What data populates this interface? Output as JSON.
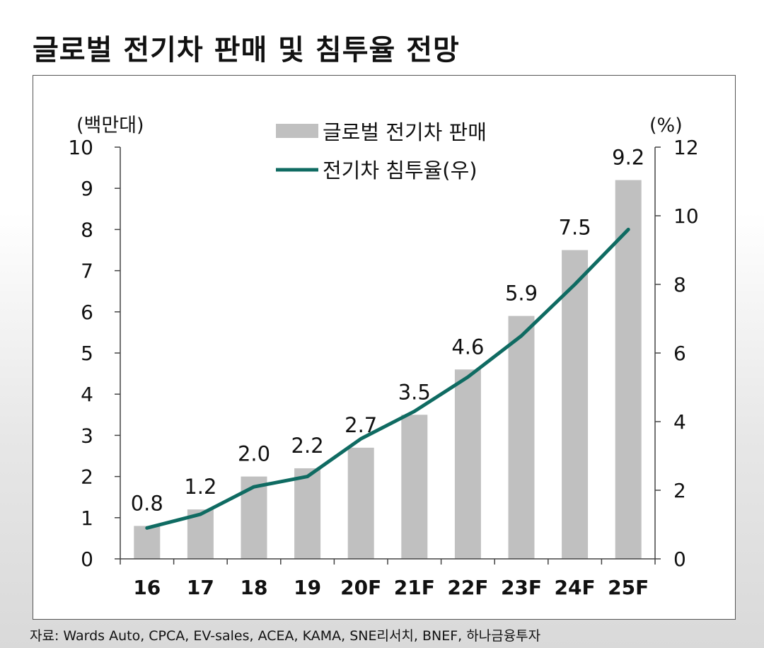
{
  "header": {
    "title": "글로벌 전기차 판매 및 침투율 전망"
  },
  "footer": {
    "source": "자료: Wards Auto, CPCA, EV-sales, ACEA, KAMA, SNE리서치, BNEF, 하나금융투자"
  },
  "colors": {
    "bar": "#c0c0c0",
    "line": "#0f6b62",
    "axis": "#444444"
  },
  "chart_data": {
    "type": "bar",
    "title": "글로벌 전기차 판매 및 침투율 전망",
    "categories": [
      "16",
      "17",
      "18",
      "19",
      "20F",
      "21F",
      "22F",
      "23F",
      "24F",
      "25F"
    ],
    "series": [
      {
        "name": "글로벌 전기차 판매",
        "type": "bar",
        "axis": "left",
        "values": [
          0.8,
          1.2,
          2.0,
          2.2,
          2.7,
          3.5,
          4.6,
          5.9,
          7.5,
          9.2
        ],
        "labels": [
          "0.8",
          "1.2",
          "2.0",
          "2.2",
          "2.7",
          "3.5",
          "4.6",
          "5.9",
          "7.5",
          "9.2"
        ]
      },
      {
        "name": "전기차 침투율(우)",
        "type": "line",
        "axis": "right",
        "values": [
          0.9,
          1.3,
          2.1,
          2.4,
          3.5,
          4.3,
          5.3,
          6.5,
          8.0,
          9.6
        ]
      }
    ],
    "ylabel": "(백만대)",
    "y2label": "(%)",
    "ylim": [
      0,
      10
    ],
    "y2lim": [
      0,
      12
    ],
    "yticks": [
      0,
      1,
      2,
      3,
      4,
      5,
      6,
      7,
      8,
      9,
      10
    ],
    "y2ticks": [
      0,
      2,
      4,
      6,
      8,
      10,
      12
    ],
    "legend_position": "top-center",
    "grid": false
  }
}
